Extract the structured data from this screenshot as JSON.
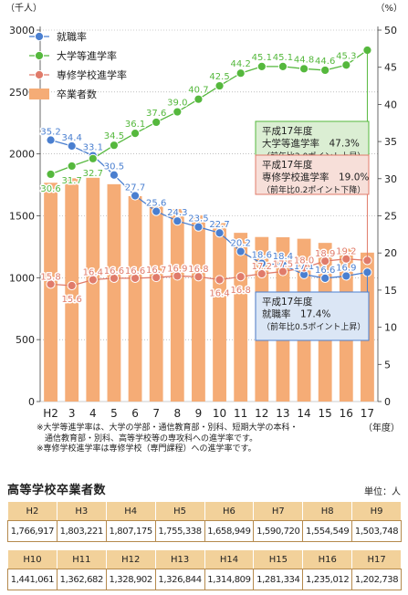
{
  "chart_data": {
    "type": "bar+line",
    "categories": [
      "H2",
      "3",
      "4",
      "5",
      "6",
      "7",
      "8",
      "9",
      "10",
      "11",
      "12",
      "13",
      "14",
      "15",
      "16",
      "17"
    ],
    "x_unit": "（年度）",
    "left_axis": {
      "unit": "（千人）",
      "min": 0,
      "max": 3000,
      "ticks": [
        "0",
        "500",
        "1000",
        "1500",
        "2000",
        "2500",
        "3000"
      ]
    },
    "right_axis": {
      "unit": "（%）",
      "min": 0,
      "max": 50,
      "ticks": [
        "0",
        "5",
        "10",
        "15",
        "20",
        "25",
        "30",
        "35",
        "40",
        "45",
        "50"
      ]
    },
    "bars": {
      "name": "卒業者数",
      "color": "#f5ac76",
      "values": [
        1766.917,
        1803.221,
        1807.175,
        1755.338,
        1658.949,
        1590.72,
        1554.549,
        1503.748,
        1441.061,
        1362.682,
        1328.902,
        1326.844,
        1314.809,
        1281.334,
        1235.012,
        1202.738
      ]
    },
    "series": [
      {
        "name": "就職率",
        "color": "#4a7fd0",
        "values": [
          35.2,
          34.4,
          33.1,
          30.5,
          27.7,
          25.6,
          24.3,
          23.5,
          22.7,
          20.2,
          18.6,
          18.4,
          17.1,
          16.6,
          16.9,
          17.4
        ],
        "labels": [
          "35.2",
          "34.4",
          "33.1",
          "30.5",
          "27.7",
          "25.6",
          "24.3",
          "23.5",
          "22.7",
          "20.2",
          "18.6",
          "18.4",
          "17.1",
          "16.6",
          "16.9",
          ""
        ]
      },
      {
        "name": "大学等進学率",
        "color": "#55b83d",
        "values": [
          30.6,
          31.7,
          32.7,
          34.5,
          36.1,
          37.6,
          39.0,
          40.7,
          42.5,
          44.2,
          45.1,
          45.1,
          44.8,
          44.6,
          45.3,
          47.3
        ],
        "labels": [
          "30.6",
          "31.7",
          "32.7",
          "34.5",
          "36.1",
          "37.6",
          "39.0",
          "40.7",
          "42.5",
          "44.2",
          "45.1",
          "45.1",
          "44.8",
          "44.6",
          "45.3",
          ""
        ]
      },
      {
        "name": "専修学校進学率",
        "color": "#e07b6a",
        "values": [
          15.8,
          15.6,
          16.4,
          16.6,
          16.6,
          16.7,
          16.9,
          16.8,
          16.4,
          16.8,
          17.2,
          17.5,
          18.0,
          18.9,
          19.2,
          19.0
        ],
        "labels": [
          "15.8",
          "15.6",
          "16.4",
          "16.6",
          "16.6",
          "16.7",
          "16.9",
          "16.8",
          "16.4",
          "16.8",
          "17.2",
          "17.5",
          "18.0",
          "18.9",
          "19.2",
          ""
        ]
      }
    ],
    "annotations": [
      {
        "series": "大学等進学率",
        "bg": "#dbeed3",
        "lines": [
          "平成17年度",
          "大学等進学率　47.3%",
          "（前年比2.0ポイント上昇）"
        ]
      },
      {
        "series": "専修学校進学率",
        "bg": "#f7dfd9",
        "lines": [
          "平成17年度",
          "専修学校進学率　19.0%",
          "（前年比0.2ポイント下降）"
        ]
      },
      {
        "series": "就職率",
        "bg": "#dbe6f5",
        "lines": [
          "平成17年度",
          "就職率　17.4%",
          "（前年比0.5ポイント上昇）"
        ]
      }
    ]
  },
  "notes": [
    "※大学等進学率は、大学の学部・通信教育部・別科、短期大学の本科・",
    "　通信教育部・別科、高等学校等の専攻科への進学率です。",
    "※専修学校進学率は専修学校（専門課程）への進学率です。"
  ],
  "table": {
    "title": "高等学校卒業者数",
    "unit": "単位：人",
    "row1": {
      "headers": [
        "H2",
        "H3",
        "H4",
        "H5",
        "H6",
        "H7",
        "H8",
        "H9"
      ],
      "values": [
        "1,766,917",
        "1,803,221",
        "1,807,175",
        "1,755,338",
        "1,658,949",
        "1,590,720",
        "1,554,549",
        "1,503,748"
      ]
    },
    "row2": {
      "headers": [
        "H10",
        "H11",
        "H12",
        "H13",
        "H14",
        "H15",
        "H16",
        "H17"
      ],
      "values": [
        "1,441,061",
        "1,362,682",
        "1,328,902",
        "1,326,844",
        "1,314,809",
        "1,281,334",
        "1,235,012",
        "1,202,738"
      ]
    }
  }
}
